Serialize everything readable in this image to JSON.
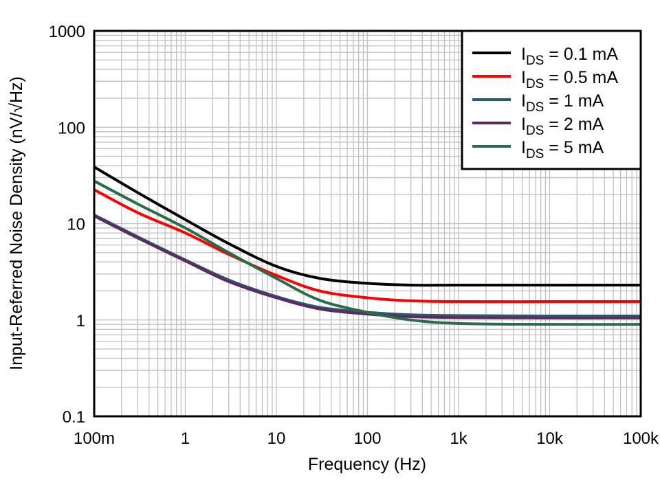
{
  "chart_data": {
    "type": "line",
    "title": "",
    "xlabel": "Frequency (Hz)",
    "ylabel": "Input-Referred Noise Density (nV/√Hz)",
    "xscale": "log",
    "yscale": "log",
    "xlim": [
      0.1,
      100000
    ],
    "ylim": [
      0.1,
      1000
    ],
    "xticks": [
      0.1,
      1,
      10,
      100,
      1000,
      10000,
      100000
    ],
    "xtick_labels": [
      "100m",
      "1",
      "10",
      "100",
      "1k",
      "10k",
      "100k"
    ],
    "yticks": [
      0.1,
      1,
      10,
      100,
      1000
    ],
    "ytick_labels": [
      "0.1",
      "1",
      "10",
      "100",
      "1000"
    ],
    "grid": true,
    "legend_position": "top-right",
    "x": [
      0.1,
      0.3,
      1,
      3,
      10,
      30,
      100,
      300,
      1000,
      10000,
      100000
    ],
    "series": [
      {
        "name": "IDS = 0.1 mA",
        "label_main": "I",
        "label_sub": "DS",
        "label_rest": " = 0.1 mA",
        "color": "#000000",
        "values": [
          38.7,
          21,
          11,
          6.2,
          3.6,
          2.7,
          2.4,
          2.3,
          2.3,
          2.3,
          2.3
        ]
      },
      {
        "name": "IDS = 0.5 mA",
        "label_main": "I",
        "label_sub": "DS",
        "label_rest": " = 0.5 mA",
        "color": "#ff0000",
        "values": [
          22.5,
          13,
          8,
          4.8,
          2.9,
          2.0,
          1.7,
          1.58,
          1.55,
          1.55,
          1.55
        ]
      },
      {
        "name": "IDS = 1 mA",
        "label_main": "I",
        "label_sub": "DS",
        "label_rest": " = 1 mA",
        "color": "#2a5a72",
        "values": [
          12.3,
          7.3,
          4.2,
          2.6,
          1.75,
          1.35,
          1.2,
          1.13,
          1.11,
          1.1,
          1.1
        ]
      },
      {
        "name": "IDS = 2 mA",
        "label_main": "I",
        "label_sub": "DS",
        "label_rest": " = 2 mA",
        "color": "#5e2a5e",
        "values": [
          12.0,
          7.1,
          4.1,
          2.5,
          1.7,
          1.3,
          1.15,
          1.08,
          1.06,
          1.05,
          1.05
        ]
      },
      {
        "name": "IDS = 5 mA",
        "label_main": "I",
        "label_sub": "DS",
        "label_rest": " = 5 mA",
        "color": "#2a6b4a",
        "values": [
          27.7,
          16,
          9,
          5,
          2.7,
          1.6,
          1.2,
          1.0,
          0.92,
          0.9,
          0.9
        ]
      }
    ]
  }
}
